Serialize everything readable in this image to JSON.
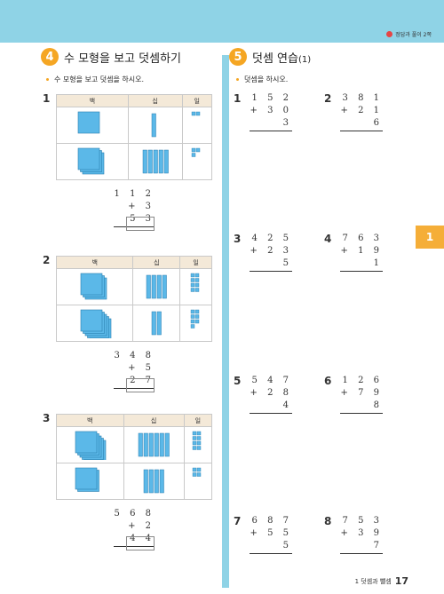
{
  "header": {
    "answer_ref": "정답과 풀이 2쪽"
  },
  "left": {
    "section_number": "4",
    "section_title": "수 모형을 보고 덧셈하기",
    "instruction": "수 모형을 보고 덧셈을 하시오.",
    "columns": [
      "백",
      "십",
      "일"
    ],
    "problems": [
      {
        "num": "1",
        "rows": [
          [
            1,
            1,
            2
          ],
          [
            3,
            5,
            3
          ]
        ],
        "a": "1 1 2",
        "b": "+ 3 5 3"
      },
      {
        "num": "2",
        "rows": [
          [
            3,
            4,
            8
          ],
          [
            5,
            2,
            7
          ]
        ],
        "a": "3 4 8",
        "b": "+ 5 2 7"
      },
      {
        "num": "3",
        "rows": [
          [
            5,
            6,
            8
          ],
          [
            2,
            4,
            4
          ]
        ],
        "a": "5 6 8",
        "b": "+ 2 4 4"
      }
    ]
  },
  "right": {
    "section_number": "5",
    "section_title": "덧셈 연습",
    "section_suffix": "(1)",
    "instruction": "덧셈을 하시오.",
    "problems": [
      {
        "num": "1",
        "a": "1 5 2",
        "b": "+ 3 0 3"
      },
      {
        "num": "2",
        "a": "3 8 1",
        "b": "+ 2 1 6"
      },
      {
        "num": "3",
        "a": "4 2 5",
        "b": "+ 2 3 5"
      },
      {
        "num": "4",
        "a": "7 6 3",
        "b": "+ 1 9 1"
      },
      {
        "num": "5",
        "a": "5 4 7",
        "b": "+ 2 8 4"
      },
      {
        "num": "6",
        "a": "1 2 6",
        "b": "+ 7 9 8"
      },
      {
        "num": "7",
        "a": "6 8 7",
        "b": "+ 5 5 5"
      },
      {
        "num": "8",
        "a": "7 5 3",
        "b": "+ 3 9 7"
      }
    ]
  },
  "side_tab": "1",
  "footer": {
    "chapter": "1 덧셈과 뺄셈",
    "page": "17"
  },
  "colors": {
    "band": "#8fd3e6",
    "accent": "#f5a623",
    "block": "#5bb8e8"
  }
}
